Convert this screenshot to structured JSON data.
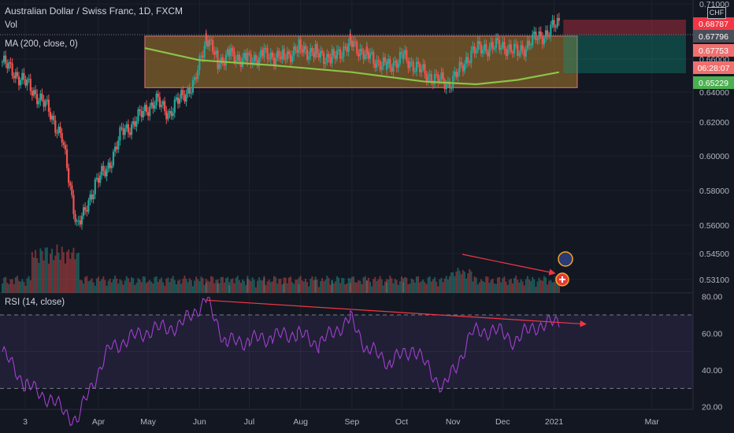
{
  "legend": {
    "title": "Australian Dollar / Swiss Franc, 1D, FXCM",
    "vol": "Vol",
    "ma": "MA (200, close, 0)",
    "rsi": "RSI (14, close)",
    "currency": "CHF"
  },
  "colors": {
    "background": "#131722",
    "up": "#26a69a",
    "down": "#ef5350",
    "ma": "#8bc34a",
    "range_fill": "#a87a2b",
    "rsi_line": "#a23fcf",
    "rsi_band": "#7e57c2",
    "trend": "#f23645"
  },
  "chart_data": [
    {
      "type": "candlestick",
      "title": "Australian Dollar / Swiss Franc, 1D, FXCM",
      "y_ticks": [
        "0.71000",
        "0.66000",
        "0.64000",
        "0.62000",
        "0.60000",
        "0.58000",
        "0.56000",
        "0.54500",
        "0.53100"
      ],
      "x_ticks": [
        "3",
        "Apr",
        "May",
        "Jun",
        "Jul",
        "Aug",
        "Sep",
        "Oct",
        "Nov",
        "Dec",
        "2021",
        "Mar"
      ],
      "price_tags": [
        {
          "label": "0.68787",
          "color": "#f23645"
        },
        {
          "label": "0.67796",
          "color": "#4a4e59"
        },
        {
          "label": "0.67753",
          "color": "#f06f6f"
        },
        {
          "label": "06:28:07",
          "color": "#f06f6f"
        },
        {
          "label": "0.65229",
          "color": "#4caf50"
        }
      ],
      "ylim": [
        0.536,
        0.712
      ],
      "anchors": [
        [
          "2020-02-03",
          0.655
        ],
        [
          "2020-02-20",
          0.64
        ],
        [
          "2020-03-02",
          0.627
        ],
        [
          "2020-03-10",
          0.61
        ],
        [
          "2020-03-19",
          0.56
        ],
        [
          "2020-03-23",
          0.565
        ],
        [
          "2020-03-30",
          0.585
        ],
        [
          "2020-04-06",
          0.592
        ],
        [
          "2020-04-15",
          0.614
        ],
        [
          "2020-04-22",
          0.619
        ],
        [
          "2020-04-30",
          0.628
        ],
        [
          "2020-05-06",
          0.632
        ],
        [
          "2020-05-14",
          0.625
        ],
        [
          "2020-05-22",
          0.636
        ],
        [
          "2020-05-29",
          0.642
        ],
        [
          "2020-06-05",
          0.67
        ],
        [
          "2020-06-12",
          0.655
        ],
        [
          "2020-06-19",
          0.659
        ],
        [
          "2020-06-30",
          0.656
        ],
        [
          "2020-07-10",
          0.659
        ],
        [
          "2020-07-22",
          0.658
        ],
        [
          "2020-07-31",
          0.663
        ],
        [
          "2020-08-10",
          0.66
        ],
        [
          "2020-08-20",
          0.657
        ],
        [
          "2020-08-31",
          0.666
        ],
        [
          "2020-09-10",
          0.659
        ],
        [
          "2020-09-22",
          0.652
        ],
        [
          "2020-10-02",
          0.658
        ],
        [
          "2020-10-15",
          0.648
        ],
        [
          "2020-10-29",
          0.642
        ],
        [
          "2020-11-06",
          0.651
        ],
        [
          "2020-11-12",
          0.661
        ],
        [
          "2020-11-24",
          0.664
        ],
        [
          "2020-12-03",
          0.664
        ],
        [
          "2020-12-10",
          0.66
        ],
        [
          "2020-12-18",
          0.667
        ],
        [
          "2020-12-28",
          0.672
        ],
        [
          "2021-01-04",
          0.678
        ]
      ],
      "range_box": {
        "from": "2020-04-29",
        "to": "2021-01-15",
        "low": 0.64,
        "high": 0.67
      },
      "ma_200": [
        [
          "2020-04-29",
          0.663
        ],
        [
          "2020-06-01",
          0.656
        ],
        [
          "2020-07-15",
          0.653
        ],
        [
          "2020-09-01",
          0.649
        ],
        [
          "2020-10-15",
          0.6435
        ],
        [
          "2020-11-15",
          0.642
        ],
        [
          "2020-12-10",
          0.6445
        ],
        [
          "2021-01-04",
          0.649
        ]
      ],
      "position_box": {
        "from": "2021-01-08",
        "to": "2021-03-18",
        "top": 0.688,
        "entry": 0.67796,
        "stop": 0.65229
      },
      "volume_trend": [
        [
          "2020-11-01",
          0.5458
        ],
        [
          "2020-12-26",
          0.5335
        ]
      ]
    },
    {
      "type": "line",
      "title": "RSI (14, close)",
      "y_ticks": [
        "80.00",
        "60.00",
        "40.00",
        "20.00"
      ],
      "ylim": [
        10,
        84
      ],
      "levels": [
        70,
        30
      ],
      "anchors": [
        [
          "2020-02-03",
          50
        ],
        [
          "2020-02-17",
          32
        ],
        [
          "2020-03-03",
          24
        ],
        [
          "2020-03-19",
          12
        ],
        [
          "2020-03-27",
          30
        ],
        [
          "2020-04-08",
          52
        ],
        [
          "2020-04-22",
          58
        ],
        [
          "2020-05-04",
          62
        ],
        [
          "2020-05-20",
          64
        ],
        [
          "2020-06-05",
          78
        ],
        [
          "2020-06-17",
          55
        ],
        [
          "2020-07-01",
          56
        ],
        [
          "2020-07-15",
          58
        ],
        [
          "2020-07-30",
          60
        ],
        [
          "2020-08-12",
          54
        ],
        [
          "2020-08-31",
          68
        ],
        [
          "2020-09-10",
          52
        ],
        [
          "2020-09-24",
          44
        ],
        [
          "2020-10-08",
          52
        ],
        [
          "2020-10-26",
          30
        ],
        [
          "2020-11-03",
          42
        ],
        [
          "2020-11-12",
          60
        ],
        [
          "2020-11-26",
          62
        ],
        [
          "2020-12-08",
          56
        ],
        [
          "2020-12-21",
          64
        ],
        [
          "2021-01-04",
          66
        ]
      ],
      "divergence": [
        [
          "2020-06-05",
          78
        ],
        [
          "2021-01-08",
          65
        ]
      ]
    }
  ]
}
